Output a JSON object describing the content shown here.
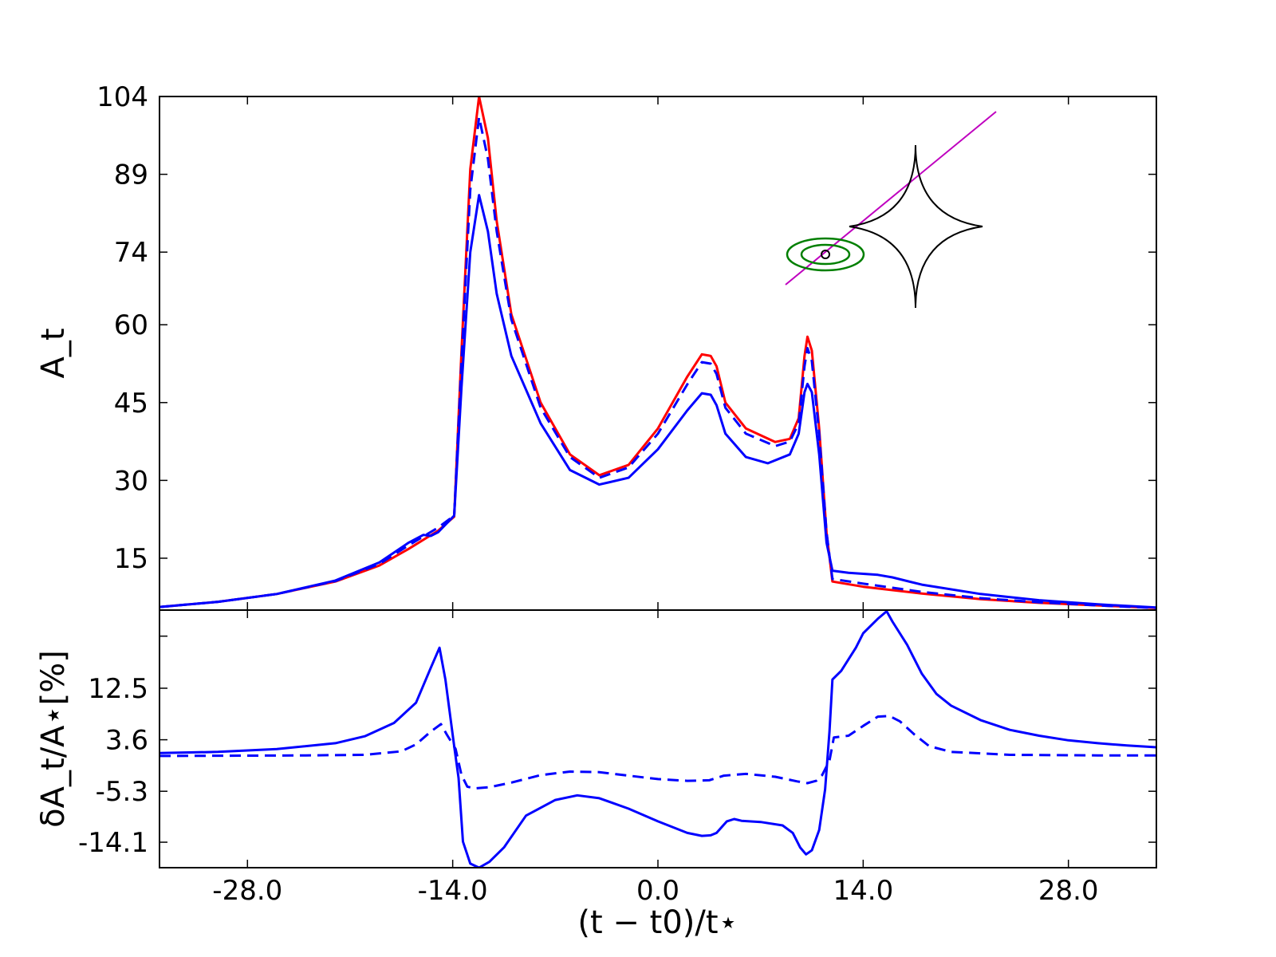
{
  "colors": {
    "red": "#ff0000",
    "blue": "#0000ff",
    "purple": "#bf00bf",
    "green": "#007f00",
    "black": "#000000"
  },
  "chart_data": [
    {
      "type": "line",
      "panel": "top",
      "title": "",
      "xlabel": "",
      "ylabel": "A_t",
      "xlim": [
        -34,
        34
      ],
      "ylim": [
        5,
        104
      ],
      "yticks": [
        "104",
        "89",
        "74",
        "60",
        "45",
        "30",
        "15"
      ],
      "ytick_values": [
        104,
        89,
        74,
        60,
        45,
        30,
        15
      ],
      "series": [
        {
          "color": "red",
          "style": "solid",
          "points": [
            [
              -34,
              5.6
            ],
            [
              -30,
              6.6
            ],
            [
              -26,
              8.1
            ],
            [
              -22,
              10.5
            ],
            [
              -19,
              13.6
            ],
            [
              -17,
              16.8
            ],
            [
              -15,
              20.3
            ],
            [
              -13.9,
              23.0
            ],
            [
              -13.4,
              55
            ],
            [
              -12.8,
              90
            ],
            [
              -12.2,
              104
            ],
            [
              -11.6,
              96
            ],
            [
              -11,
              80
            ],
            [
              -10,
              62
            ],
            [
              -8,
              45
            ],
            [
              -6,
              35
            ],
            [
              -4,
              31
            ],
            [
              -2,
              33
            ],
            [
              0,
              40
            ],
            [
              2,
              50
            ],
            [
              3,
              54.3
            ],
            [
              3.6,
              54
            ],
            [
              4,
              52
            ],
            [
              4.6,
              45
            ],
            [
              6,
              40
            ],
            [
              8,
              37.4
            ],
            [
              9,
              38
            ],
            [
              9.6,
              42
            ],
            [
              10,
              54
            ],
            [
              10.2,
              57.7
            ],
            [
              10.5,
              55
            ],
            [
              11,
              40
            ],
            [
              11.5,
              20
            ],
            [
              11.9,
              10.5
            ],
            [
              14,
              9.5
            ],
            [
              18,
              8.2
            ],
            [
              22,
              7.1
            ],
            [
              26,
              6.4
            ],
            [
              30,
              5.9
            ],
            [
              34,
              5.4
            ]
          ]
        },
        {
          "color": "blue",
          "style": "dashed",
          "points": [
            [
              -34,
              5.6
            ],
            [
              -30,
              6.6
            ],
            [
              -26,
              8.1
            ],
            [
              -22,
              10.6
            ],
            [
              -19,
              13.9
            ],
            [
              -17,
              17.5
            ],
            [
              -15,
              20.9
            ],
            [
              -13.9,
              23.2
            ],
            [
              -13.4,
              53
            ],
            [
              -12.8,
              86
            ],
            [
              -12.2,
              100
            ],
            [
              -11.6,
              92
            ],
            [
              -11,
              78
            ],
            [
              -10,
              61
            ],
            [
              -8,
              44
            ],
            [
              -6,
              34.5
            ],
            [
              -4,
              30.5
            ],
            [
              -2,
              32.5
            ],
            [
              0,
              39
            ],
            [
              2,
              48.5
            ],
            [
              3,
              52.8
            ],
            [
              3.6,
              52.5
            ],
            [
              4,
              50.5
            ],
            [
              4.6,
              44
            ],
            [
              6,
              39
            ],
            [
              8,
              36.6
            ],
            [
              9,
              37.5
            ],
            [
              9.6,
              41
            ],
            [
              10,
              52
            ],
            [
              10.2,
              55.5
            ],
            [
              10.5,
              53
            ],
            [
              11,
              39
            ],
            [
              11.5,
              20
            ],
            [
              11.9,
              11
            ],
            [
              14,
              10.1
            ],
            [
              16,
              9.3
            ],
            [
              18,
              8.5
            ],
            [
              22,
              7.3
            ],
            [
              26,
              6.5
            ],
            [
              30,
              5.9
            ],
            [
              34,
              5.4
            ]
          ]
        },
        {
          "color": "blue",
          "style": "solid",
          "points": [
            [
              -34,
              5.6
            ],
            [
              -30,
              6.6
            ],
            [
              -26,
              8.1
            ],
            [
              -22,
              10.7
            ],
            [
              -19,
              14.2
            ],
            [
              -17,
              18.0
            ],
            [
              -16,
              19.5
            ],
            [
              -15.5,
              19.3
            ],
            [
              -15,
              20.0
            ],
            [
              -13.9,
              23.2
            ],
            [
              -13.4,
              48
            ],
            [
              -12.8,
              74
            ],
            [
              -12.2,
              85
            ],
            [
              -11.6,
              78
            ],
            [
              -11,
              66
            ],
            [
              -10,
              54
            ],
            [
              -8,
              41
            ],
            [
              -6,
              32
            ],
            [
              -4,
              29.2
            ],
            [
              -2,
              30.5
            ],
            [
              0,
              36
            ],
            [
              2,
              43.5
            ],
            [
              3,
              46.8
            ],
            [
              3.6,
              46.5
            ],
            [
              4,
              44.5
            ],
            [
              4.6,
              39
            ],
            [
              6,
              34.5
            ],
            [
              7.5,
              33.3
            ],
            [
              9,
              35
            ],
            [
              9.6,
              39
            ],
            [
              10,
              47
            ],
            [
              10.2,
              48.6
            ],
            [
              10.5,
              47
            ],
            [
              11,
              35
            ],
            [
              11.5,
              18
            ],
            [
              11.9,
              12.6
            ],
            [
              13,
              12.2
            ],
            [
              15,
              11.8
            ],
            [
              16,
              11.3
            ],
            [
              18,
              9.9
            ],
            [
              22,
              8.1
            ],
            [
              26,
              6.9
            ],
            [
              30,
              6.1
            ],
            [
              34,
              5.5
            ]
          ]
        }
      ]
    },
    {
      "type": "line",
      "panel": "bottom",
      "title": "",
      "xlabel": "(t − t0)/t⋆",
      "ylabel": "δA_t/A⋆[%]",
      "xlim": [
        -34,
        34
      ],
      "ylim": [
        -18.5,
        26
      ],
      "xticks": [
        "-28.0",
        "-14.0",
        "0.0",
        "14.0",
        "28.0"
      ],
      "xtick_values": [
        -28,
        -14,
        0,
        14,
        28
      ],
      "yticks": [
        "12.5",
        "3.6",
        "-5.3",
        "-14.1"
      ],
      "ytick_values": [
        12.5,
        3.6,
        -5.3,
        -14.1
      ],
      "series": [
        {
          "color": "blue",
          "style": "solid",
          "points": [
            [
              -34,
              1.3
            ],
            [
              -30,
              1.5
            ],
            [
              -26,
              2.0
            ],
            [
              -22,
              3.0
            ],
            [
              -20,
              4.2
            ],
            [
              -18,
              6.5
            ],
            [
              -16.5,
              10
            ],
            [
              -15.5,
              16
            ],
            [
              -14.9,
              19.5
            ],
            [
              -14.5,
              14
            ],
            [
              -13.9,
              2.5
            ],
            [
              -13.6,
              -3
            ],
            [
              -13.3,
              -14
            ],
            [
              -12.8,
              -17.8
            ],
            [
              -12.2,
              -18.5
            ],
            [
              -11.5,
              -17.5
            ],
            [
              -10.5,
              -15
            ],
            [
              -9,
              -9.5
            ],
            [
              -7,
              -6.8
            ],
            [
              -5.5,
              -6.0
            ],
            [
              -4,
              -6.5
            ],
            [
              -2,
              -8.3
            ],
            [
              0,
              -10.5
            ],
            [
              2,
              -12.5
            ],
            [
              3,
              -13
            ],
            [
              3.6,
              -12.9
            ],
            [
              4,
              -12.5
            ],
            [
              4.7,
              -10.5
            ],
            [
              5.2,
              -10.1
            ],
            [
              5.7,
              -10.4
            ],
            [
              7,
              -10.6
            ],
            [
              8.5,
              -11.2
            ],
            [
              9.2,
              -12.5
            ],
            [
              9.7,
              -15
            ],
            [
              10.1,
              -16.2
            ],
            [
              10.5,
              -15.5
            ],
            [
              11,
              -12
            ],
            [
              11.4,
              -5
            ],
            [
              11.7,
              5
            ],
            [
              11.9,
              14
            ],
            [
              12.5,
              15.5
            ],
            [
              13,
              17.5
            ],
            [
              13.5,
              19.5
            ],
            [
              14,
              22
            ],
            [
              15,
              24.5
            ],
            [
              15.6,
              25.8
            ],
            [
              16,
              24
            ],
            [
              17,
              20
            ],
            [
              18,
              15
            ],
            [
              19,
              11.5
            ],
            [
              20,
              9.5
            ],
            [
              22,
              7.0
            ],
            [
              24,
              5.3
            ],
            [
              26,
              4.3
            ],
            [
              28,
              3.5
            ],
            [
              30,
              3.0
            ],
            [
              32,
              2.6
            ],
            [
              34,
              2.3
            ]
          ]
        },
        {
          "color": "blue",
          "style": "dashed",
          "points": [
            [
              -34,
              0.8
            ],
            [
              -28,
              0.85
            ],
            [
              -24,
              0.9
            ],
            [
              -20,
              1.0
            ],
            [
              -17.5,
              1.6
            ],
            [
              -16.5,
              2.8
            ],
            [
              -15.5,
              5
            ],
            [
              -14.8,
              6.3
            ],
            [
              -14.4,
              4.5
            ],
            [
              -13.8,
              2.0
            ],
            [
              -13.4,
              -2.5
            ],
            [
              -13,
              -4.5
            ],
            [
              -12.5,
              -4.8
            ],
            [
              -11.5,
              -4.6
            ],
            [
              -10,
              -3.8
            ],
            [
              -8,
              -2.5
            ],
            [
              -6,
              -1.9
            ],
            [
              -4,
              -2.0
            ],
            [
              -2,
              -2.6
            ],
            [
              0,
              -3.2
            ],
            [
              2,
              -3.5
            ],
            [
              3.5,
              -3.4
            ],
            [
              4.5,
              -2.6
            ],
            [
              6,
              -2.3
            ],
            [
              8,
              -2.8
            ],
            [
              9.5,
              -3.6
            ],
            [
              10.2,
              -3.9
            ],
            [
              10.8,
              -3.5
            ],
            [
              11.2,
              -2.5
            ],
            [
              11.7,
              0
            ],
            [
              12,
              4.0
            ],
            [
              13,
              4.3
            ],
            [
              14,
              6.0
            ],
            [
              15,
              7.6
            ],
            [
              15.8,
              7.7
            ],
            [
              16.5,
              6.8
            ],
            [
              17.5,
              4.5
            ],
            [
              18.5,
              2.5
            ],
            [
              20,
              1.5
            ],
            [
              24,
              1.0
            ],
            [
              30,
              0.9
            ],
            [
              34,
              0.9
            ]
          ]
        }
      ]
    }
  ],
  "inset": {
    "description_markers": "caustic, source trajectory, source disks",
    "trajectory_color": "purple",
    "caustic_color": "black",
    "source_color": "green"
  }
}
